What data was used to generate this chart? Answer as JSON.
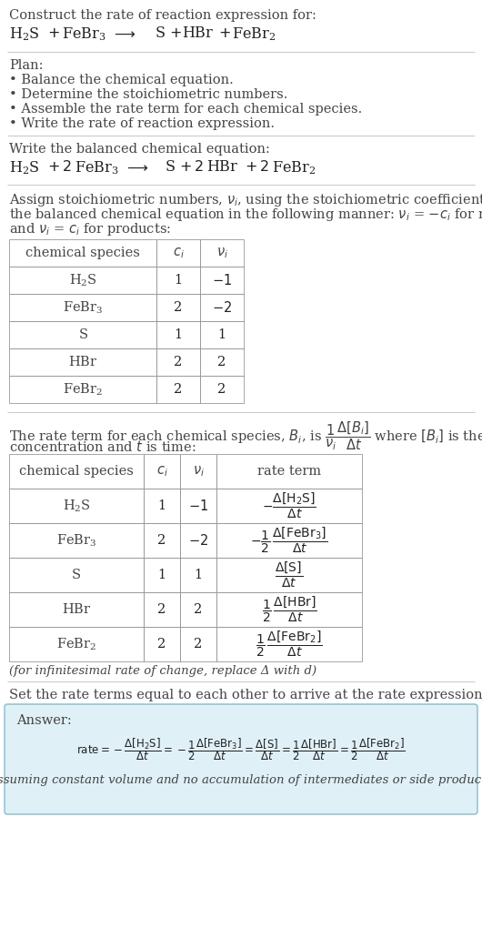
{
  "bg_color": "#ffffff",
  "text_color": "#222222",
  "gray_text": "#444444",
  "answer_bg": "#dff0f7",
  "answer_border": "#88bbcc",
  "title_line1": "Construct the rate of reaction expression for:",
  "plan_header": "Plan:",
  "plan_items": [
    "• Balance the chemical equation.",
    "• Determine the stoichiometric numbers.",
    "• Assemble the rate term for each chemical species.",
    "• Write the rate of reaction expression."
  ],
  "balanced_header": "Write the balanced chemical equation:",
  "table1_headers": [
    "chemical species",
    "c_i",
    "ν_i"
  ],
  "table1_rows": [
    [
      "H_2S",
      "1",
      "-1"
    ],
    [
      "FeBr_3",
      "2",
      "-2"
    ],
    [
      "S",
      "1",
      "1"
    ],
    [
      "HBr",
      "2",
      "2"
    ],
    [
      "FeBr_2",
      "2",
      "2"
    ]
  ],
  "table2_headers": [
    "chemical species",
    "c_i",
    "ν_i",
    "rate term"
  ],
  "table2_rows": [
    [
      "H_2S",
      "1",
      "-1"
    ],
    [
      "FeBr_3",
      "2",
      "-2"
    ],
    [
      "S",
      "1",
      "1"
    ],
    [
      "HBr",
      "2",
      "2"
    ],
    [
      "FeBr_2",
      "2",
      "2"
    ]
  ],
  "infinitesimal_note": "(for infinitesimal rate of change, replace Δ with d)",
  "set_equal_text": "Set the rate terms equal to each other to arrive at the rate expression:",
  "answer_label": "Answer:",
  "answer_note": "(assuming constant volume and no accumulation of intermediates or side products)"
}
